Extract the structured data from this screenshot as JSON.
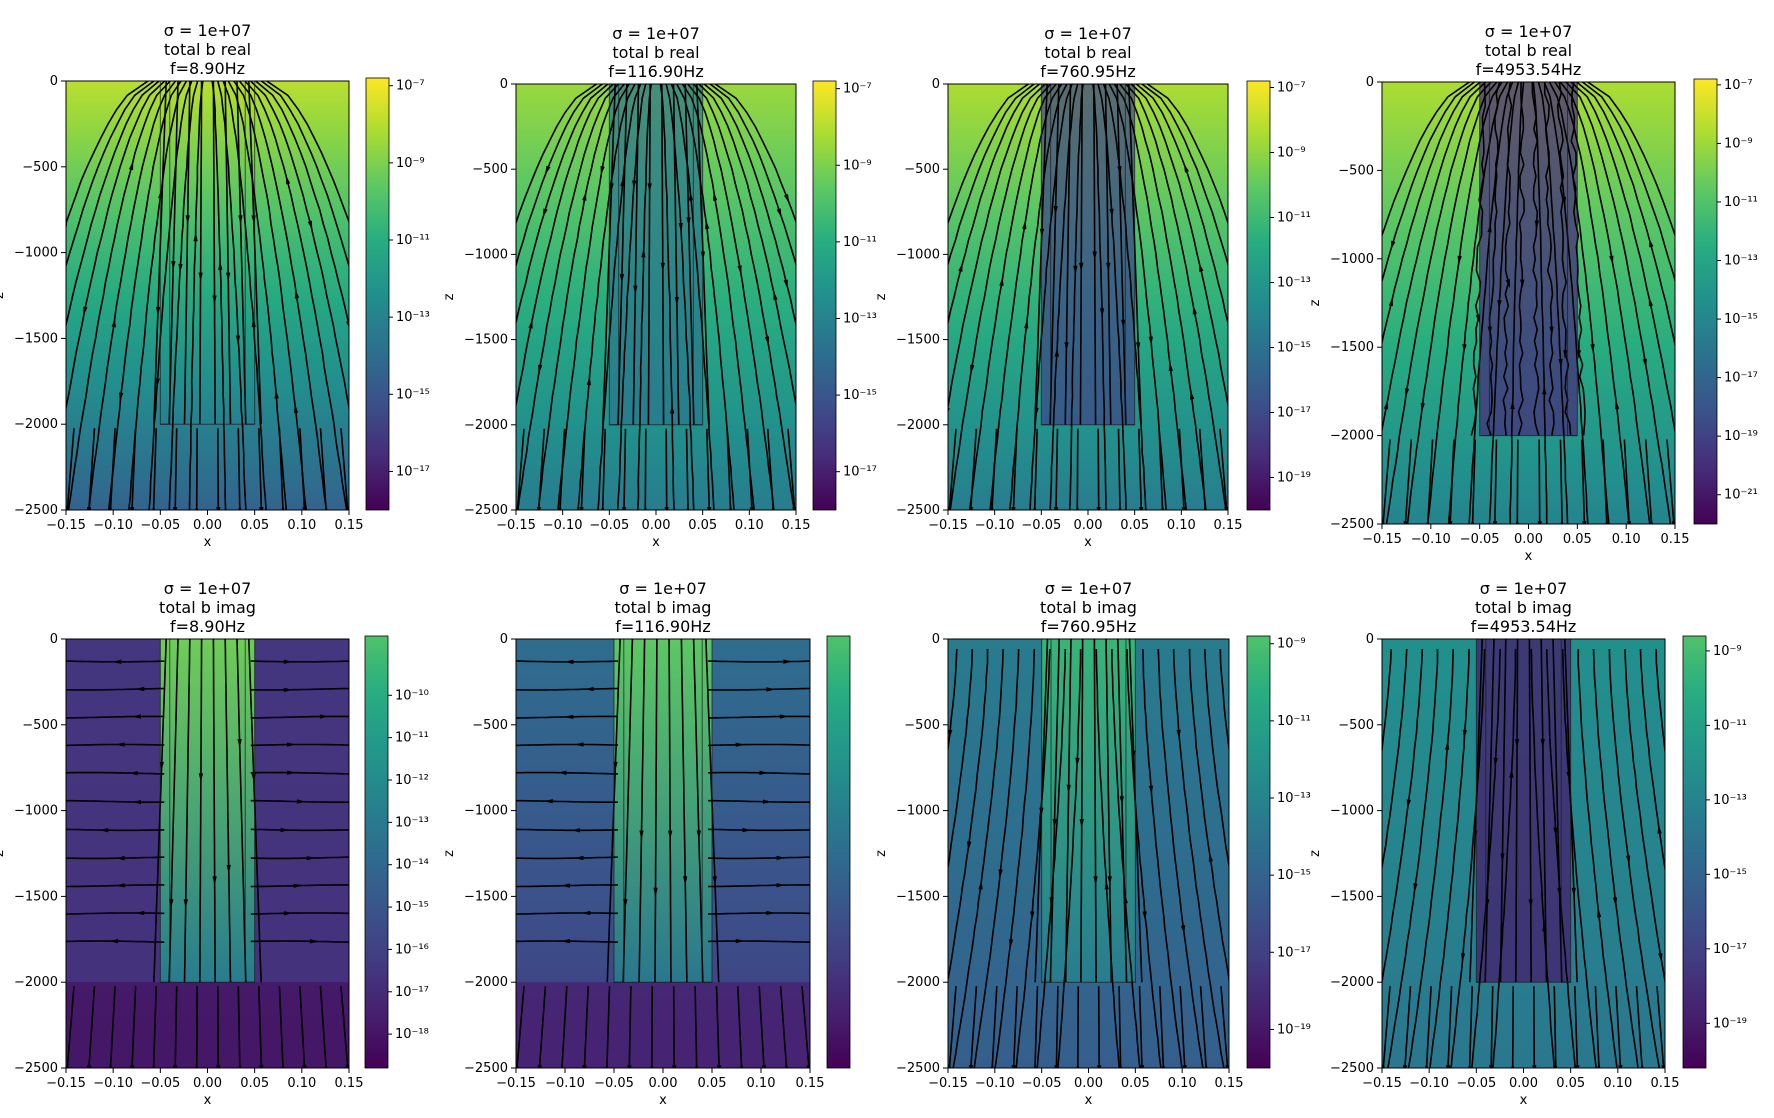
{
  "figure": {
    "background": "#ffffff",
    "line_color": "#000000",
    "colormap": "viridis",
    "colormap_stops": [
      "#440154",
      "#472c7a",
      "#3b518b",
      "#2c718e",
      "#21908d",
      "#27ad81",
      "#5cc863",
      "#aadc32",
      "#fde725"
    ]
  },
  "chart_data": [
    {
      "type": "heatmap",
      "subtype": "streamplot",
      "title": [
        "σ = 1e+07",
        "total b real",
        "f=8.90Hz"
      ],
      "xlabel": "x",
      "ylabel": "z",
      "xlim": [
        -0.15,
        0.15
      ],
      "ylim": [
        -2500,
        0
      ],
      "xticks": [
        "−0.15",
        "−0.10",
        "−0.05",
        "0.00",
        "0.05",
        "0.10",
        "0.15"
      ],
      "yticks": [
        "0",
        "−500",
        "−1000",
        "−1500",
        "−2000",
        "−2500"
      ],
      "colorbar": {
        "scale": "log",
        "range_exp": [
          -18,
          -6.8
        ],
        "ticks": [
          "10⁻⁷",
          "10⁻⁹",
          "10⁻¹¹",
          "10⁻¹³",
          "10⁻¹⁵",
          "10⁻¹⁷"
        ],
        "tick_exps": [
          -7,
          -9,
          -11,
          -13,
          -15,
          -17
        ]
      },
      "field": {
        "top": 0.9,
        "bottom": 0.32,
        "casing_level": null,
        "below_level": null
      },
      "casing": {
        "x": [
          -0.05,
          0.05
        ],
        "wall": 0.01,
        "depth": -2000,
        "filled": false
      },
      "streamlines": {
        "pattern": "diverge"
      }
    },
    {
      "type": "heatmap",
      "subtype": "streamplot",
      "title": [
        "σ = 1e+07",
        "total b real",
        "f=116.90Hz"
      ],
      "xlabel": "x",
      "ylabel": "z",
      "xlim": [
        -0.15,
        0.15
      ],
      "ylim": [
        -2500,
        0
      ],
      "xticks": [
        "−0.15",
        "−0.10",
        "−0.05",
        "0.00",
        "0.05",
        "0.10",
        "0.15"
      ],
      "yticks": [
        "0",
        "−500",
        "−1000",
        "−1500",
        "−2000",
        "−2500"
      ],
      "colorbar": {
        "scale": "log",
        "range_exp": [
          -18,
          -6.8
        ],
        "ticks": [
          "10⁻⁷",
          "10⁻⁹",
          "10⁻¹¹",
          "10⁻¹³",
          "10⁻¹⁵",
          "10⁻¹⁷"
        ],
        "tick_exps": [
          -7,
          -9,
          -11,
          -13,
          -15,
          -17
        ]
      },
      "field": {
        "top": 0.85,
        "bottom": 0.42,
        "casing_level": 0.4,
        "below_level": null
      },
      "casing": {
        "x": [
          -0.05,
          0.05
        ],
        "wall": 0.01,
        "depth": -2000,
        "filled": true
      },
      "streamlines": {
        "pattern": "diverge"
      }
    },
    {
      "type": "heatmap",
      "subtype": "streamplot",
      "title": [
        "σ = 1e+07",
        "total b real",
        "f=760.95Hz"
      ],
      "xlabel": "x",
      "ylabel": "z",
      "xlim": [
        -0.15,
        0.15
      ],
      "ylim": [
        -2500,
        0
      ],
      "xticks": [
        "−0.15",
        "−0.10",
        "−0.05",
        "0.00",
        "0.05",
        "0.10",
        "0.15"
      ],
      "yticks": [
        "0",
        "−500",
        "−1000",
        "−1500",
        "−2000",
        "−2500"
      ],
      "colorbar": {
        "scale": "log",
        "range_exp": [
          -20,
          -6.8
        ],
        "ticks": [
          "10⁻⁷",
          "10⁻⁹",
          "10⁻¹¹",
          "10⁻¹³",
          "10⁻¹⁵",
          "10⁻¹⁷",
          "10⁻¹⁹"
        ],
        "tick_exps": [
          -7,
          -9,
          -11,
          -13,
          -15,
          -17,
          -19
        ]
      },
      "field": {
        "top": 0.88,
        "bottom": 0.42,
        "casing_level": 0.22,
        "below_level": null
      },
      "casing": {
        "x": [
          -0.05,
          0.05
        ],
        "wall": 0.01,
        "depth": -2000,
        "filled": true
      },
      "streamlines": {
        "pattern": "diverge"
      }
    },
    {
      "type": "heatmap",
      "subtype": "streamplot",
      "title": [
        "σ = 1e+07",
        "total b real",
        "f=4953.54Hz"
      ],
      "xlabel": "x",
      "ylabel": "z",
      "xlim": [
        -0.15,
        0.15
      ],
      "ylim": [
        -2500,
        0
      ],
      "xticks": [
        "−0.15",
        "−0.10",
        "−0.05",
        "0.00",
        "0.05",
        "0.10",
        "0.15"
      ],
      "yticks": [
        "0",
        "−500",
        "−1000",
        "−1500",
        "−2000",
        "−2500"
      ],
      "colorbar": {
        "scale": "log",
        "range_exp": [
          -22,
          -6.8
        ],
        "ticks": [
          "10⁻⁷",
          "10⁻⁹",
          "10⁻¹¹",
          "10⁻¹³",
          "10⁻¹⁵",
          "10⁻¹⁷",
          "10⁻¹⁹",
          "10⁻²¹"
        ],
        "tick_exps": [
          -7,
          -9,
          -11,
          -13,
          -15,
          -17,
          -19,
          -21
        ]
      },
      "field": {
        "top": 0.88,
        "bottom": 0.45,
        "casing_level": 0.13,
        "below_level": null
      },
      "casing": {
        "x": [
          -0.05,
          0.05
        ],
        "wall": 0.01,
        "depth": -2000,
        "filled": true
      },
      "streamlines": {
        "pattern": "diverge"
      }
    },
    {
      "type": "heatmap",
      "subtype": "streamplot",
      "title": [
        "σ = 1e+07",
        "total b imag",
        "f=8.90Hz"
      ],
      "xlabel": "x",
      "ylabel": "z",
      "xlim": [
        -0.15,
        0.15
      ],
      "ylim": [
        -2500,
        0
      ],
      "xticks": [
        "−0.15",
        "−0.10",
        "−0.05",
        "0.00",
        "0.05",
        "0.10",
        "0.15"
      ],
      "yticks": [
        "0",
        "−500",
        "−1000",
        "−1500",
        "−2000",
        "−2500"
      ],
      "colorbar": {
        "scale": "log",
        "range_exp": [
          -18.8,
          -8.6
        ],
        "ticks": [
          "10⁻¹⁰",
          "10⁻¹¹",
          "10⁻¹²",
          "10⁻¹³",
          "10⁻¹⁴",
          "10⁻¹⁵",
          "10⁻¹⁶",
          "10⁻¹⁷",
          "10⁻¹⁸"
        ],
        "tick_exps": [
          -10,
          -11,
          -12,
          -13,
          -14,
          -15,
          -16,
          -17,
          -18
        ]
      },
      "field": {
        "top": 0.16,
        "bottom": 0.14,
        "casing_level": null,
        "below_level": 0.06
      },
      "casing": {
        "x": [
          -0.05,
          0.05
        ],
        "wall": 0.01,
        "depth": -2000,
        "filled": true,
        "inner_top": 0.78,
        "inner_bottom": 0.42
      },
      "streamlines": {
        "pattern": "horizontal"
      }
    },
    {
      "type": "heatmap",
      "subtype": "streamplot",
      "title": [
        "σ = 1e+07",
        "total b imag",
        "f=116.90Hz"
      ],
      "xlabel": "x",
      "ylabel": "z",
      "xlim": [
        -0.15,
        0.15
      ],
      "ylim": [
        -2500,
        0
      ],
      "xticks": [
        "−0.15",
        "−0.10",
        "−0.05",
        "0.00",
        "0.05",
        "0.10",
        "0.15"
      ],
      "yticks": [
        "0",
        "−500",
        "−1000",
        "−1500",
        "−2000",
        "−2500"
      ],
      "colorbar": {
        "scale": "log",
        "range_exp": [
          0,
          1
        ],
        "ticks": [],
        "tick_exps": []
      },
      "field": {
        "top": 0.36,
        "bottom": 0.18,
        "casing_level": null,
        "below_level": 0.1
      },
      "casing": {
        "x": [
          -0.05,
          0.05
        ],
        "wall": 0.01,
        "depth": -2000,
        "filled": true,
        "inner_top": 0.75,
        "inner_bottom": 0.4
      },
      "streamlines": {
        "pattern": "horizontal"
      }
    },
    {
      "type": "heatmap",
      "subtype": "streamplot",
      "title": [
        "σ = 1e+07",
        "total b imag",
        "f=760.95Hz"
      ],
      "xlabel": "x",
      "ylabel": "z",
      "xlim": [
        -0.15,
        0.15
      ],
      "ylim": [
        -2500,
        0
      ],
      "xticks": [
        "−0.15",
        "−0.10",
        "−0.05",
        "0.00",
        "0.05",
        "0.10",
        "0.15"
      ],
      "yticks": [
        "0",
        "−500",
        "−1000",
        "−1500",
        "−2000",
        "−2500"
      ],
      "colorbar": {
        "scale": "log",
        "range_exp": [
          -20,
          -8.8
        ],
        "ticks": [
          "10⁻⁹",
          "10⁻¹¹",
          "10⁻¹³",
          "10⁻¹⁵",
          "10⁻¹⁷",
          "10⁻¹⁹"
        ],
        "tick_exps": [
          -9,
          -11,
          -13,
          -15,
          -17,
          -19
        ]
      },
      "field": {
        "top": 0.42,
        "bottom": 0.3,
        "casing_level": null,
        "below_level": null
      },
      "casing": {
        "x": [
          -0.05,
          0.05
        ],
        "wall": 0.01,
        "depth": -2000,
        "filled": true,
        "inner_top": 0.66,
        "inner_bottom": 0.42
      },
      "streamlines": {
        "pattern": "mixed"
      }
    },
    {
      "type": "heatmap",
      "subtype": "streamplot",
      "title": [
        "σ = 1e+07",
        "total b imag",
        "f=4953.54Hz"
      ],
      "xlabel": "x",
      "ylabel": "z",
      "xlim": [
        -0.15,
        0.15
      ],
      "ylim": [
        -2500,
        0
      ],
      "xticks": [
        "−0.15",
        "−0.10",
        "−0.05",
        "0.00",
        "0.05",
        "0.10",
        "0.15"
      ],
      "yticks": [
        "0",
        "−500",
        "−1000",
        "−1500",
        "−2000",
        "−2500"
      ],
      "colorbar": {
        "scale": "log",
        "range_exp": [
          -20.2,
          -8.6
        ],
        "ticks": [
          "10⁻⁹",
          "10⁻¹¹",
          "10⁻¹³",
          "10⁻¹⁵",
          "10⁻¹⁷",
          "10⁻¹⁹"
        ],
        "tick_exps": [
          -9,
          -11,
          -13,
          -15,
          -17,
          -19
        ]
      },
      "field": {
        "top": 0.5,
        "bottom": 0.4,
        "casing_level": 0.08,
        "below_level": null
      },
      "casing": {
        "x": [
          -0.05,
          0.05
        ],
        "wall": 0.01,
        "depth": -2000,
        "filled": true
      },
      "streamlines": {
        "pattern": "mixed"
      }
    }
  ]
}
